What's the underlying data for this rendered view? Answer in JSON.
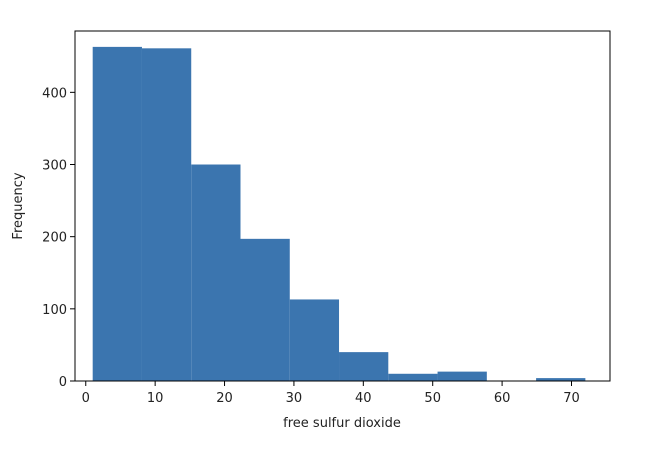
{
  "chart_data": {
    "type": "bar",
    "subtype": "histogram",
    "title": "",
    "xlabel": "free sulfur dioxide",
    "ylabel": "Frequency",
    "xlim": [
      -1.55,
      75.55
    ],
    "ylim": [
      0,
      485
    ],
    "xticks": [
      0,
      10,
      20,
      30,
      40,
      50,
      60,
      70
    ],
    "yticks": [
      0,
      100,
      200,
      300,
      400
    ],
    "bin_edges": [
      1,
      8.1,
      15.2,
      22.3,
      29.4,
      36.5,
      43.6,
      50.7,
      57.8,
      64.9,
      72
    ],
    "values": [
      463,
      461,
      300,
      197,
      113,
      40,
      10,
      13,
      0,
      4
    ],
    "color": "#3b75af",
    "grid": false,
    "legend": "none"
  }
}
